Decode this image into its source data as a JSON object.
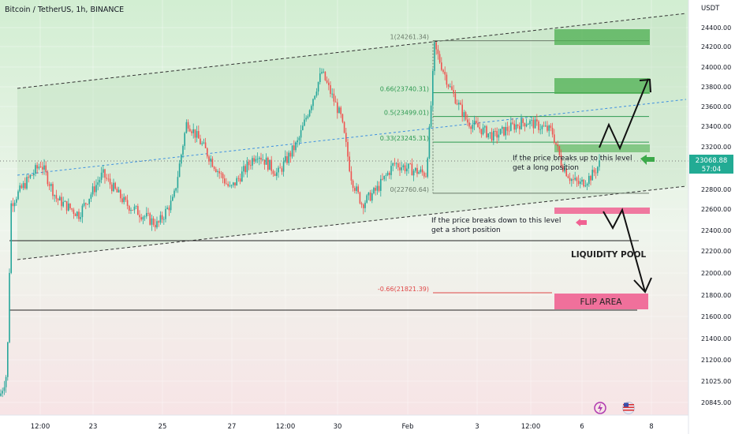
{
  "header": {
    "symbol_title": "Bitcoin / TetherUS, 1h, BINANCE"
  },
  "price_axis": {
    "unit": "USDT",
    "ticks": [
      24400,
      24200,
      24000,
      23800,
      23600,
      23400,
      23200,
      23000,
      22800,
      22600,
      22400,
      22200,
      22000,
      21800,
      21600,
      21400,
      21200,
      21025,
      20845
    ],
    "tick_labels": [
      "24400.00",
      "24200.00",
      "24000.00",
      "23800.00",
      "23600.00",
      "23400.00",
      "23200.00",
      "23000.00",
      "22800.00",
      "22600.00",
      "22400.00",
      "22200.00",
      "22000.00",
      "21800.00",
      "21600.00",
      "21400.00",
      "21200.00",
      "21025.00",
      "20845.00"
    ],
    "current_price_label": "23068.88",
    "countdown_label": "57:04"
  },
  "time_axis": {
    "tick_labels": [
      "12:00",
      "23",
      "25",
      "27",
      "12:00",
      "30",
      "Feb",
      "3",
      "12:00",
      "6",
      "8"
    ]
  },
  "fibonacci": [
    {
      "label": "1(24261.34)",
      "price": 24261.34,
      "color": "#6b7b6b"
    },
    {
      "label": "0.66(23740.31)",
      "price": 23740.31,
      "color": "#2e9a52"
    },
    {
      "label": "0.5(23499.01)",
      "price": 23499.01,
      "color": "#2e9a52"
    },
    {
      "label": "0.33(23245.31)",
      "price": 23245.31,
      "color": "#2e9a52"
    },
    {
      "label": "0(22760.64)",
      "price": 22760.64,
      "color": "#6b7b6b"
    },
    {
      "label": "-0.66(21821.39)",
      "price": 21821.39,
      "color": "#e04848"
    }
  ],
  "annotations": {
    "long_text_line1": "If the price breaks up to this level",
    "long_text_line2": "get a long position",
    "short_text_line1": "If the price breaks down to this level",
    "short_text_line2": "get a short position",
    "liquidity_pool": "LIQUIDITY POOL",
    "flip_area": "FLIP AREA"
  },
  "colors": {
    "up": "#26a69a",
    "down": "#ef5350",
    "green_zone": "#4caf50",
    "pink_zone": "#f06292",
    "midline": "#4a90d9",
    "bg_top": "#cfeccf",
    "bg_bottom": "#f6e6e6"
  },
  "chart_data": {
    "type": "candlestick",
    "title": "Bitcoin / TetherUS, 1h, BINANCE",
    "price_levels": {
      "current": 23068.88,
      "liquidity_pool_line": 22300,
      "lower_support_line": 21660,
      "dotted_current": 23068.88
    },
    "channel": "rising parallel channel with dashed boundaries and dotted blue midline",
    "key_path_approx": [
      {
        "x": "22 Jan",
        "y": 20900
      },
      {
        "x": "22 Jan",
        "y": 22650
      },
      {
        "x": "23 Jan",
        "y": 23050
      },
      {
        "x": "24 Jan",
        "y": 22550
      },
      {
        "x": "25 Jan",
        "y": 22450
      },
      {
        "x": "26 Jan",
        "y": 23450
      },
      {
        "x": "27 Jan",
        "y": 22800
      },
      {
        "x": "28 Jan",
        "y": 23250
      },
      {
        "x": "29 Jan",
        "y": 23900
      },
      {
        "x": "30 Jan",
        "y": 22650
      },
      {
        "x": "31 Jan",
        "y": 23150
      },
      {
        "x": "1 Feb",
        "y": 23050
      },
      {
        "x": "2 Feb",
        "y": 24200
      },
      {
        "x": "3 Feb",
        "y": 23450
      },
      {
        "x": "4 Feb",
        "y": 23400
      },
      {
        "x": "5 Feb",
        "y": 23350
      },
      {
        "x": "6 Feb",
        "y": 22850
      },
      {
        "x": "6 Feb",
        "y": 23068.88
      }
    ]
  }
}
